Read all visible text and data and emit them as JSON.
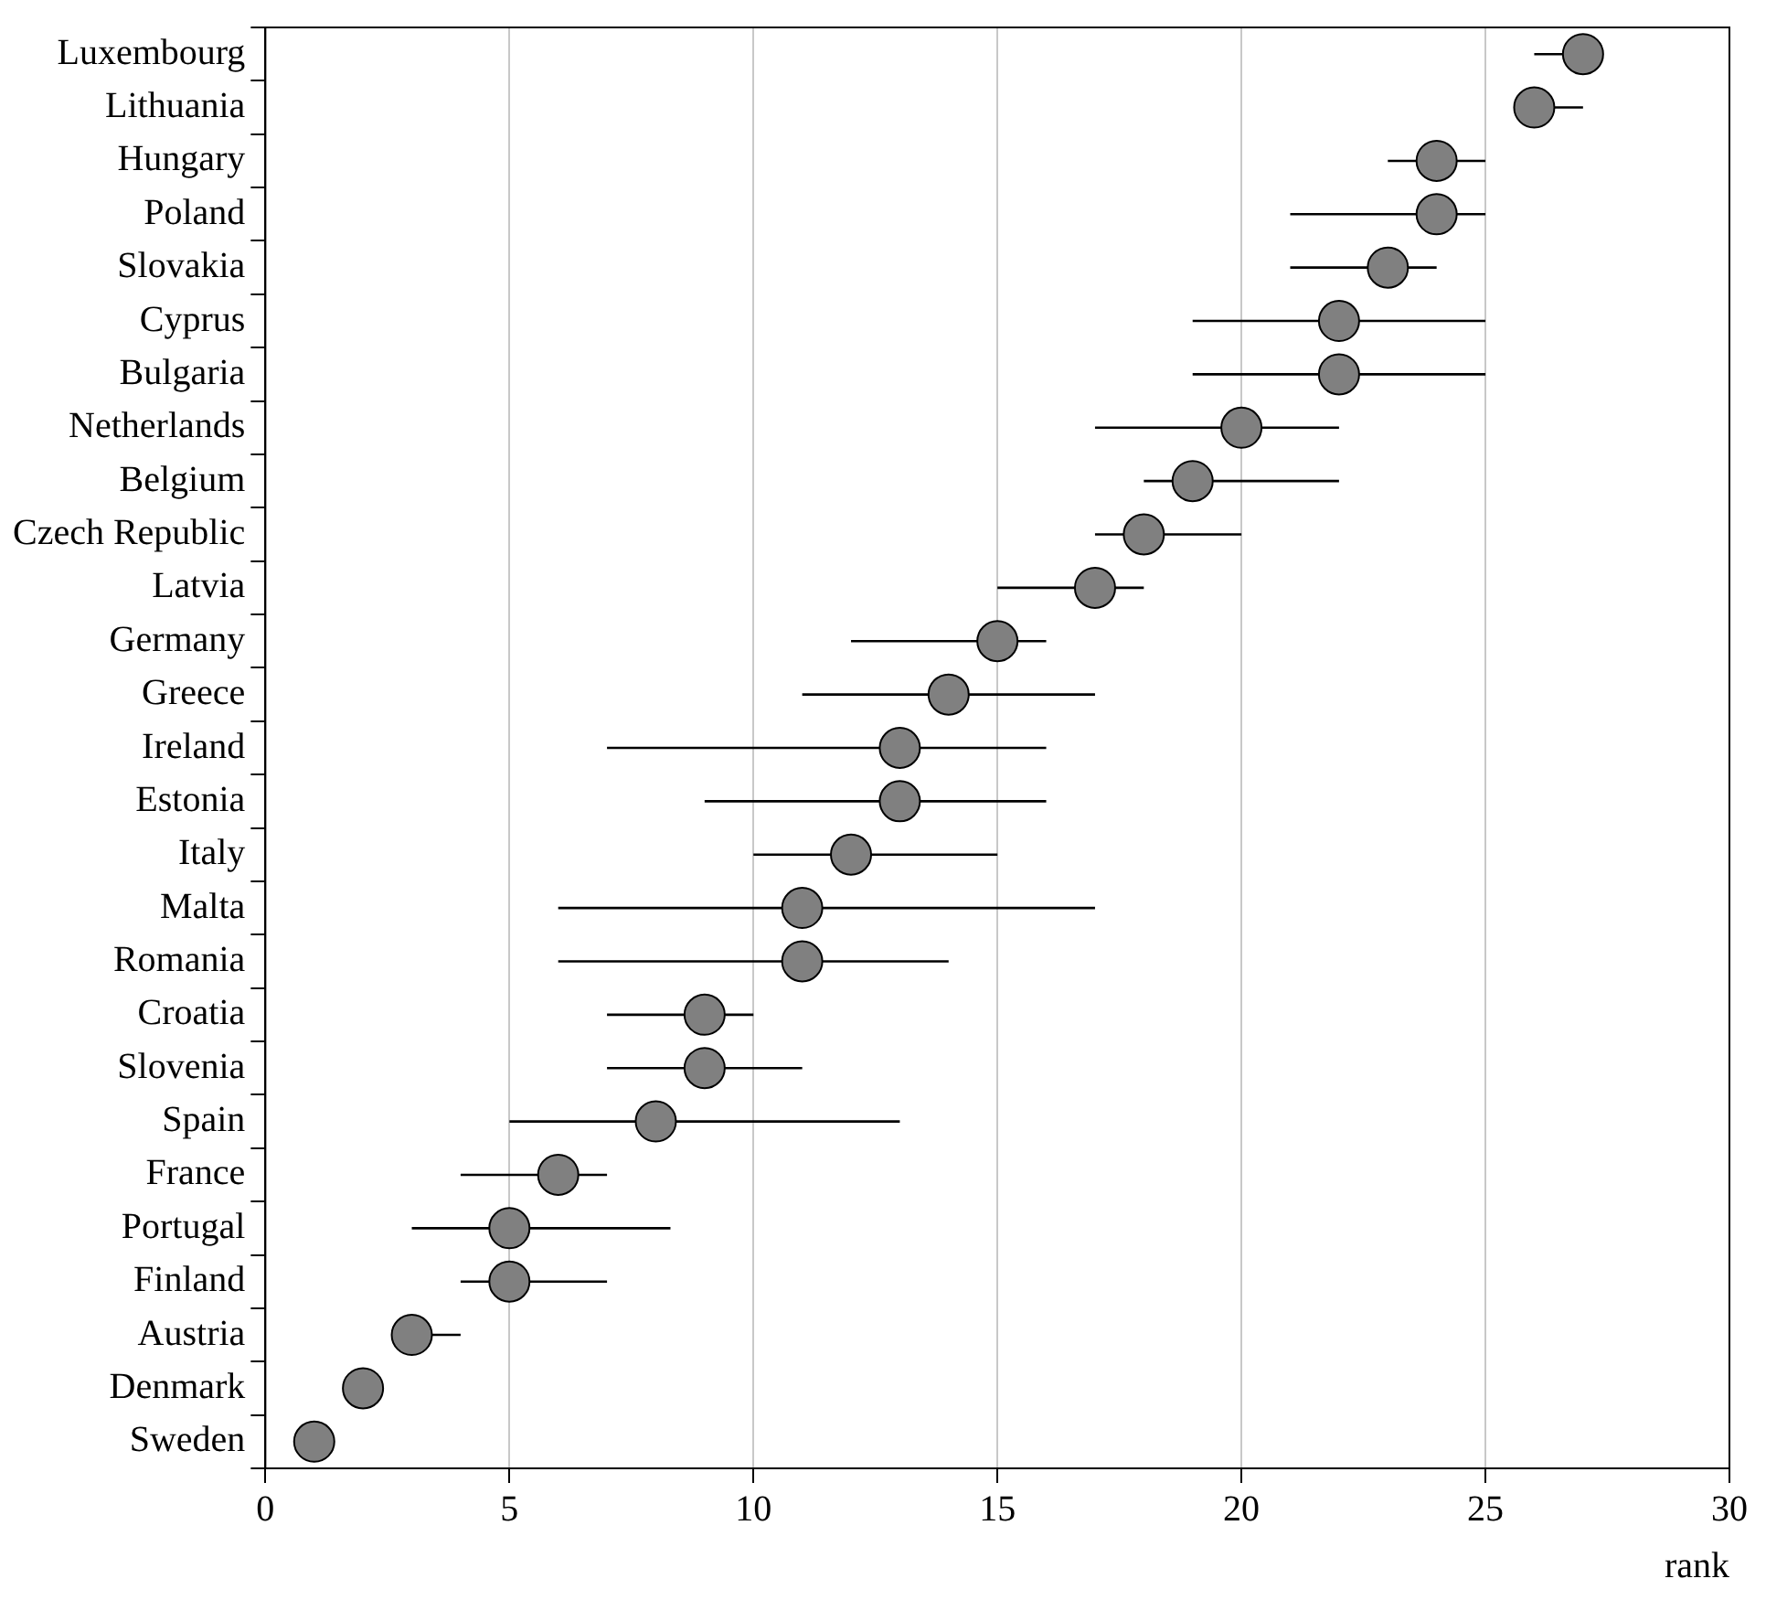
{
  "chart_data": {
    "type": "scatter",
    "orientation": "horizontal",
    "xlabel": "rank",
    "categories": [
      "Luxembourg",
      "Lithuania",
      "Hungary",
      "Poland",
      "Slovakia",
      "Cyprus",
      "Bulgaria",
      "Netherlands",
      "Belgium",
      "Czech Republic",
      "Latvia",
      "Germany",
      "Greece",
      "Ireland",
      "Estonia",
      "Italy",
      "Malta",
      "Romania",
      "Croatia",
      "Slovenia",
      "Spain",
      "France",
      "Portugal",
      "Finland",
      "Austria",
      "Denmark",
      "Sweden"
    ],
    "values": [
      27,
      26,
      24,
      24,
      23,
      22,
      22,
      20,
      19,
      18,
      17,
      15,
      14,
      13,
      13,
      12,
      11,
      11,
      9,
      9,
      8,
      6,
      5,
      5,
      3,
      2,
      1
    ],
    "errors": [
      [
        26,
        27
      ],
      [
        26,
        27
      ],
      [
        23,
        25
      ],
      [
        21,
        25
      ],
      [
        21,
        24
      ],
      [
        19,
        25
      ],
      [
        19,
        25
      ],
      [
        17,
        22
      ],
      [
        18,
        22
      ],
      [
        17,
        20
      ],
      [
        15,
        18
      ],
      [
        12,
        16
      ],
      [
        11,
        17
      ],
      [
        7,
        16
      ],
      [
        9,
        16
      ],
      [
        10,
        15
      ],
      [
        6,
        17
      ],
      [
        6,
        14
      ],
      [
        7,
        10
      ],
      [
        7,
        11
      ],
      [
        5,
        13
      ],
      [
        4,
        7
      ],
      [
        3,
        8.3
      ],
      [
        4,
        7
      ],
      [
        3,
        4
      ],
      null,
      null
    ],
    "color": "#808080",
    "marker": "circle",
    "xlim": [
      0,
      30
    ],
    "xticks": [
      0,
      5,
      10,
      15,
      20,
      25,
      30
    ],
    "grid": "x",
    "legend": false
  }
}
